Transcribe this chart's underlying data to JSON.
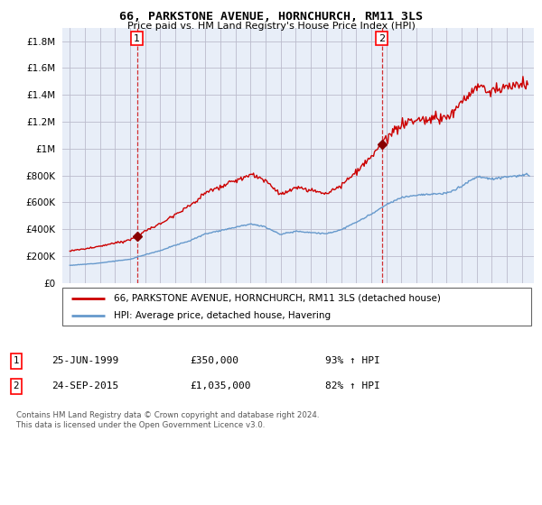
{
  "title": "66, PARKSTONE AVENUE, HORNCHURCH, RM11 3LS",
  "subtitle": "Price paid vs. HM Land Registry's House Price Index (HPI)",
  "ytick_values": [
    0,
    200000,
    400000,
    600000,
    800000,
    1000000,
    1200000,
    1400000,
    1600000,
    1800000
  ],
  "ylim": [
    0,
    1900000
  ],
  "xlim_start": 1994.5,
  "xlim_end": 2025.8,
  "legend_property": "66, PARKSTONE AVENUE, HORNCHURCH, RM11 3LS (detached house)",
  "legend_hpi": "HPI: Average price, detached house, Havering",
  "sale1_date": "25-JUN-1999",
  "sale1_price": "£350,000",
  "sale1_hpi": "93% ↑ HPI",
  "sale2_date": "24-SEP-2015",
  "sale2_price": "£1,035,000",
  "sale2_hpi": "82% ↑ HPI",
  "footer": "Contains HM Land Registry data © Crown copyright and database right 2024.\nThis data is licensed under the Open Government Licence v3.0.",
  "property_color": "#cc0000",
  "hpi_color": "#6699cc",
  "vline_color": "#cc0000",
  "marker_color": "#880000",
  "chart_bg": "#e8eef8",
  "background_color": "#ffffff",
  "grid_color": "#bbbbcc",
  "sale1_year_f": 1999.46,
  "sale1_price_v": 350000,
  "sale2_year_f": 2015.71,
  "sale2_price_v": 1035000
}
